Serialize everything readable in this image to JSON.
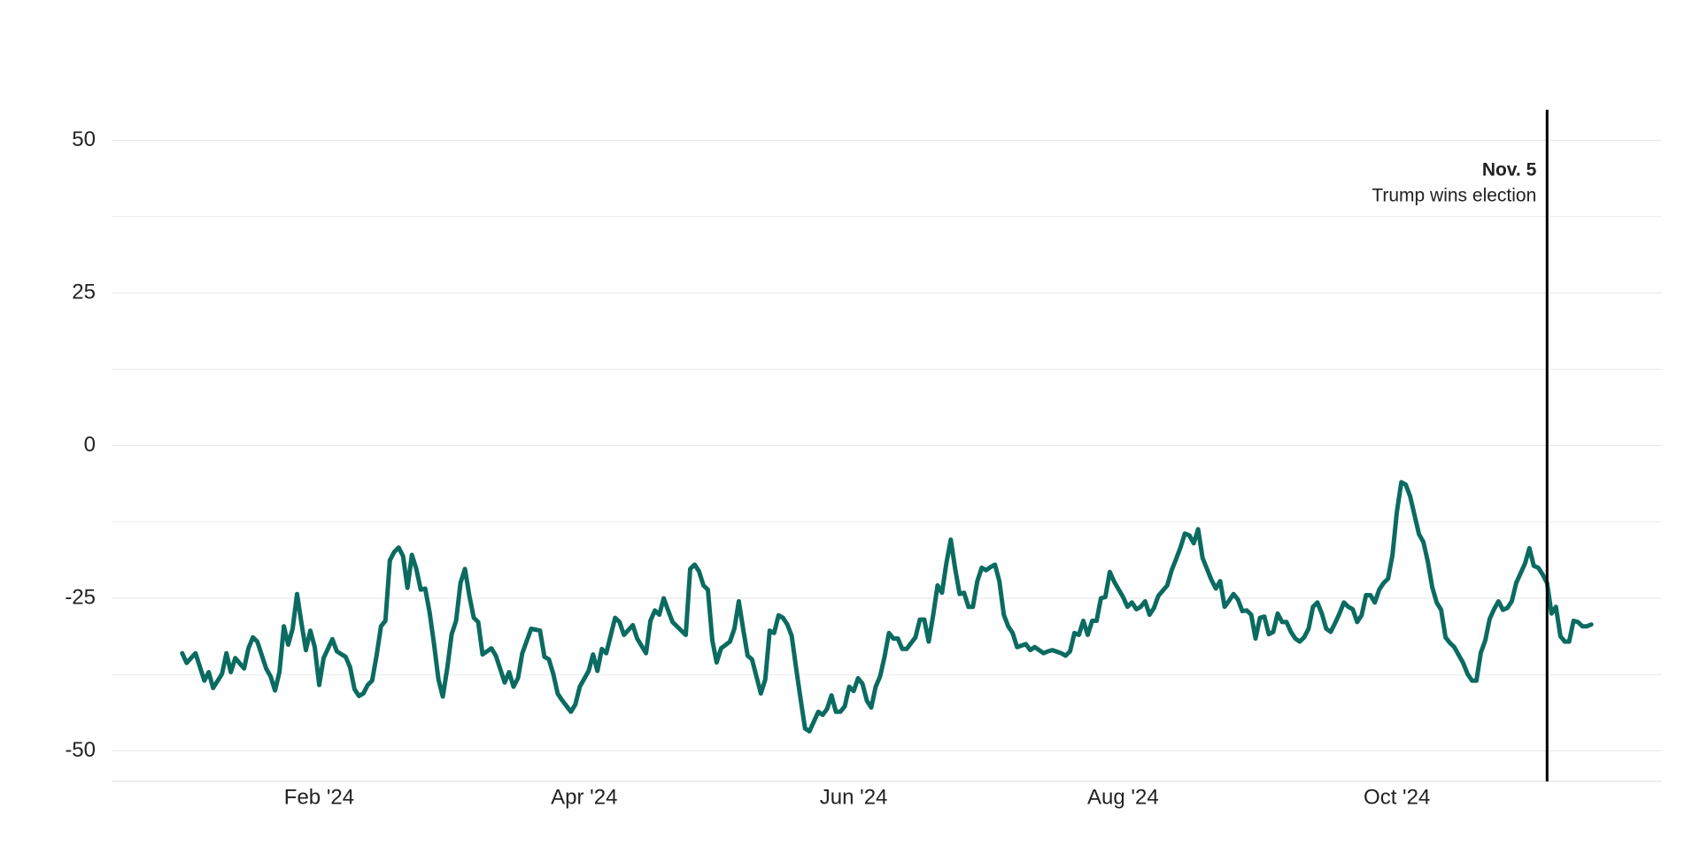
{
  "chart_data": {
    "type": "line",
    "color": "#0b6b61",
    "grid": true,
    "xlim": [
      -16,
      335
    ],
    "ylim": [
      -55,
      55
    ],
    "yticks": [
      50,
      25,
      0,
      -25,
      -50
    ],
    "minor_yticks": [
      37.5,
      12.5,
      -12.5,
      -37.5
    ],
    "xticks": [
      {
        "value": 31,
        "label": "Feb '24"
      },
      {
        "value": 91,
        "label": "Apr '24"
      },
      {
        "value": 152,
        "label": "Jun '24"
      },
      {
        "value": 213,
        "label": "Aug '24"
      },
      {
        "value": 275,
        "label": "Oct '24"
      }
    ],
    "annotation": {
      "x": 309,
      "label": "Nov. 5",
      "text": "Trump wins election"
    },
    "x": [
      0,
      1,
      3,
      5,
      6,
      7,
      9,
      10,
      11,
      12,
      14,
      15,
      16,
      17,
      19,
      20,
      21,
      22,
      23,
      24,
      25,
      26,
      27,
      28,
      29,
      30,
      31,
      32,
      34,
      35,
      37,
      38,
      39,
      40,
      41,
      42,
      43,
      44,
      45,
      46,
      47,
      48,
      49,
      50,
      51,
      52,
      53,
      54,
      55,
      56,
      57,
      58,
      59,
      60,
      61,
      62,
      63,
      64,
      65,
      66,
      67,
      68,
      70,
      71,
      73,
      74,
      75,
      76,
      77,
      78,
      79,
      81,
      82,
      83,
      84,
      85,
      86,
      88,
      89,
      90,
      92,
      93,
      94,
      95,
      96,
      98,
      99,
      100,
      102,
      103,
      105,
      106,
      107,
      108,
      109,
      110,
      111,
      113,
      114,
      115,
      116,
      117,
      118,
      119,
      120,
      121,
      122,
      124,
      125,
      126,
      127,
      128,
      129,
      130,
      131,
      132,
      133,
      134,
      135,
      136,
      137,
      138,
      139,
      140,
      141,
      142,
      144,
      145,
      146,
      147,
      148,
      149,
      150,
      151,
      152,
      153,
      154,
      155,
      156,
      157,
      158,
      159,
      160,
      161,
      162,
      163,
      164,
      166,
      167,
      168,
      169,
      170,
      171,
      172,
      173,
      174,
      175,
      176,
      177,
      178,
      179,
      180,
      181,
      182,
      183,
      184,
      185,
      186,
      187,
      188,
      189,
      191,
      192,
      193,
      195,
      196,
      197,
      199,
      200,
      201,
      202,
      203,
      204,
      205,
      206,
      207,
      208,
      209,
      210,
      211,
      213,
      214,
      215,
      216,
      217,
      218,
      219,
      220,
      221,
      223,
      224,
      225,
      226,
      227,
      228,
      229,
      230,
      231,
      233,
      234,
      235,
      236,
      237,
      238,
      239,
      240,
      241,
      242,
      243,
      244,
      245,
      246,
      247,
      248,
      249,
      250,
      251,
      252,
      253,
      254,
      255,
      256,
      257,
      258,
      259,
      260,
      261,
      262,
      263,
      264,
      265,
      266,
      267,
      268,
      269,
      270,
      271,
      272,
      273,
      274,
      275,
      276,
      277,
      278,
      280,
      281,
      282,
      283,
      284,
      285,
      286,
      287,
      288,
      290,
      291,
      292,
      293,
      294,
      295,
      296,
      297,
      298,
      299,
      300,
      301,
      302,
      303,
      304,
      305,
      306,
      307,
      308,
      309,
      310,
      311,
      312,
      313,
      314,
      315,
      316,
      317,
      318,
      319
    ],
    "values": [
      -34.0,
      -35.6,
      -34.0,
      -38.5,
      -37.1,
      -39.7,
      -37.4,
      -34.0,
      -37.1,
      -34.8,
      -36.5,
      -33.2,
      -31.4,
      -32.1,
      -36.5,
      -37.8,
      -40.1,
      -37.1,
      -29.6,
      -32.6,
      -30.0,
      -24.3,
      -29.1,
      -33.5,
      -30.3,
      -33.0,
      -39.2,
      -34.8,
      -31.7,
      -33.7,
      -34.6,
      -36.3,
      -39.9,
      -41.0,
      -40.6,
      -39.2,
      -38.5,
      -34.4,
      -29.6,
      -28.7,
      -18.8,
      -17.4,
      -16.7,
      -18.1,
      -23.3,
      -17.9,
      -20.2,
      -23.6,
      -23.4,
      -27.3,
      -32.5,
      -38.3,
      -41.1,
      -36.5,
      -30.9,
      -28.7,
      -22.5,
      -20.2,
      -24.6,
      -28.2,
      -28.9,
      -34.2,
      -33.2,
      -34.4,
      -38.8,
      -37.1,
      -39.5,
      -38.1,
      -34.0,
      -32.0,
      -30.0,
      -30.3,
      -34.6,
      -35.0,
      -37.4,
      -40.6,
      -41.7,
      -43.6,
      -42.4,
      -39.5,
      -36.9,
      -34.2,
      -36.9,
      -33.3,
      -34.0,
      -28.2,
      -28.9,
      -31.0,
      -29.4,
      -31.6,
      -34.0,
      -28.7,
      -27.0,
      -27.7,
      -25.0,
      -27.0,
      -28.9,
      -30.3,
      -31.0,
      -20.2,
      -19.5,
      -20.6,
      -22.9,
      -23.6,
      -31.9,
      -35.5,
      -33.2,
      -32.1,
      -30.0,
      -25.5,
      -30.1,
      -34.4,
      -35.0,
      -37.8,
      -40.6,
      -38.3,
      -30.3,
      -30.7,
      -27.8,
      -28.2,
      -29.3,
      -31.2,
      -36.5,
      -41.5,
      -46.3,
      -46.8,
      -43.6,
      -44.1,
      -43.1,
      -40.9,
      -43.6,
      -43.6,
      -42.7,
      -39.5,
      -40.2,
      -38.1,
      -39.0,
      -41.8,
      -42.9,
      -39.5,
      -37.8,
      -34.6,
      -30.7,
      -31.6,
      -31.6,
      -33.3,
      -33.3,
      -31.4,
      -28.5,
      -28.5,
      -32.1,
      -27.8,
      -22.9,
      -24.1,
      -19.3,
      -15.4,
      -20.2,
      -24.3,
      -24.1,
      -26.4,
      -26.4,
      -22.2,
      -20.0,
      -20.4,
      -19.9,
      -19.5,
      -22.2,
      -27.7,
      -29.6,
      -30.7,
      -33.0,
      -32.5,
      -33.5,
      -33.0,
      -34.0,
      -33.7,
      -33.5,
      -34.0,
      -34.4,
      -33.7,
      -30.7,
      -31.0,
      -28.7,
      -31.0,
      -28.7,
      -28.7,
      -25.0,
      -24.8,
      -20.7,
      -22.3,
      -24.8,
      -26.4,
      -25.7,
      -26.8,
      -26.4,
      -25.5,
      -27.7,
      -26.6,
      -24.6,
      -22.9,
      -20.4,
      -18.6,
      -16.7,
      -14.4,
      -14.7,
      -16.0,
      -13.7,
      -18.4,
      -22.0,
      -23.4,
      -22.2,
      -26.4,
      -25.4,
      -24.3,
      -25.2,
      -27.1,
      -27.0,
      -27.7,
      -31.6,
      -28.2,
      -28.0,
      -30.9,
      -30.5,
      -27.5,
      -28.9,
      -28.9,
      -30.5,
      -31.6,
      -32.1,
      -31.4,
      -30.0,
      -26.4,
      -25.7,
      -27.5,
      -30.0,
      -30.5,
      -29.1,
      -27.5,
      -25.7,
      -26.4,
      -26.8,
      -28.9,
      -27.8,
      -24.5,
      -24.5,
      -25.7,
      -23.6,
      -22.5,
      -21.8,
      -17.9,
      -10.8,
      -6.0,
      -6.4,
      -8.3,
      -14.5,
      -15.8,
      -19.0,
      -23.2,
      -25.7,
      -26.9,
      -31.4,
      -32.3,
      -33.0,
      -35.6,
      -37.4,
      -38.5,
      -38.5,
      -33.9,
      -31.9,
      -28.4,
      -26.8,
      -25.5,
      -26.9,
      -26.6,
      -25.5,
      -22.5,
      -20.9,
      -19.3,
      -16.8,
      -19.7,
      -20.0,
      -21.1,
      -22.5,
      -27.5,
      -26.4,
      -31.2,
      -32.1,
      -32.1,
      -28.7,
      -28.9,
      -29.6,
      -29.6,
      -29.3
    ]
  }
}
